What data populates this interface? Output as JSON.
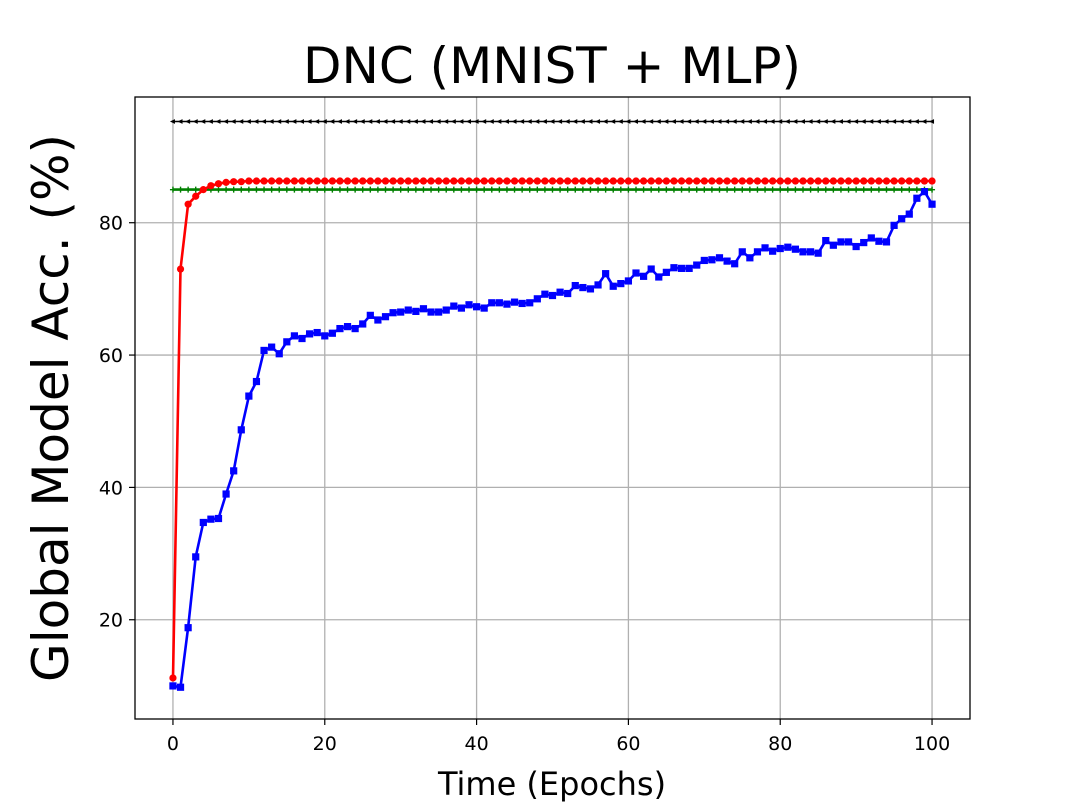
{
  "chart_data": {
    "type": "line",
    "title": "DNC (MNIST + MLP)",
    "xlabel": "Time (Epochs)",
    "ylabel": "Global Model Acc. (%)",
    "xlim": [
      -5,
      105
    ],
    "ylim": [
      5,
      99
    ],
    "xticks": [
      0,
      20,
      40,
      60,
      80,
      100
    ],
    "yticks": [
      20,
      40,
      60,
      80
    ],
    "xtick_labels": [
      "0",
      "20",
      "40",
      "60",
      "80",
      "100"
    ],
    "ytick_labels": [
      "20",
      "40",
      "60",
      "80"
    ],
    "grid": true,
    "legend": "none",
    "x": [
      0,
      1,
      2,
      3,
      4,
      5,
      6,
      7,
      8,
      9,
      10,
      11,
      12,
      13,
      14,
      15,
      16,
      17,
      18,
      19,
      20,
      21,
      22,
      23,
      24,
      25,
      26,
      27,
      28,
      29,
      30,
      31,
      32,
      33,
      34,
      35,
      36,
      37,
      38,
      39,
      40,
      41,
      42,
      43,
      44,
      45,
      46,
      47,
      48,
      49,
      50,
      51,
      52,
      53,
      54,
      55,
      56,
      57,
      58,
      59,
      60,
      61,
      62,
      63,
      64,
      65,
      66,
      67,
      68,
      69,
      70,
      71,
      72,
      73,
      74,
      75,
      76,
      77,
      78,
      79,
      80,
      81,
      82,
      83,
      84,
      85,
      86,
      87,
      88,
      89,
      90,
      91,
      92,
      93,
      94,
      95,
      96,
      97,
      98,
      99,
      100
    ],
    "series": [
      {
        "color": "#000000",
        "marker": "triangle-left",
        "constant": 95.3
      },
      {
        "color": "#008000",
        "marker": "plus",
        "constant": 85.0
      },
      {
        "color": "#ff0000",
        "marker": "circle",
        "values": [
          11.2,
          73.0,
          82.8,
          84.0,
          85.0,
          85.6,
          85.9,
          86.1,
          86.2,
          86.2,
          86.3,
          86.3,
          86.3,
          86.3,
          86.3,
          86.3,
          86.3,
          86.3,
          86.3,
          86.3,
          86.3,
          86.3,
          86.3,
          86.3,
          86.3,
          86.3,
          86.3,
          86.3,
          86.3,
          86.3,
          86.3,
          86.3,
          86.3,
          86.3,
          86.3,
          86.3,
          86.3,
          86.3,
          86.3,
          86.3,
          86.3,
          86.3,
          86.3,
          86.3,
          86.3,
          86.3,
          86.3,
          86.3,
          86.3,
          86.3,
          86.3,
          86.3,
          86.3,
          86.3,
          86.3,
          86.3,
          86.3,
          86.3,
          86.3,
          86.3,
          86.3,
          86.3,
          86.3,
          86.3,
          86.3,
          86.3,
          86.3,
          86.3,
          86.3,
          86.3,
          86.3,
          86.3,
          86.3,
          86.3,
          86.3,
          86.3,
          86.3,
          86.3,
          86.3,
          86.3,
          86.3,
          86.3,
          86.3,
          86.3,
          86.3,
          86.3,
          86.3,
          86.3,
          86.3,
          86.3,
          86.3,
          86.3,
          86.3,
          86.3,
          86.3,
          86.3,
          86.3,
          86.3,
          86.3,
          86.3,
          86.3
        ]
      },
      {
        "color": "#0000ff",
        "marker": "square",
        "values": [
          10.0,
          9.8,
          18.8,
          29.5,
          34.7,
          35.2,
          35.3,
          39.0,
          42.5,
          48.7,
          53.8,
          56.0,
          60.7,
          61.2,
          60.2,
          62.0,
          62.9,
          62.5,
          63.2,
          63.4,
          62.9,
          63.3,
          64.0,
          64.3,
          64.0,
          64.7,
          66.0,
          65.3,
          65.8,
          66.4,
          66.5,
          66.8,
          66.6,
          67.0,
          66.5,
          66.5,
          66.8,
          67.4,
          67.1,
          67.6,
          67.3,
          67.1,
          67.9,
          67.9,
          67.7,
          68.0,
          67.8,
          67.9,
          68.5,
          69.2,
          69.0,
          69.5,
          69.3,
          70.5,
          70.2,
          70.0,
          70.6,
          72.3,
          70.4,
          70.8,
          71.2,
          72.4,
          71.9,
          73.0,
          71.8,
          72.5,
          73.2,
          73.1,
          73.1,
          73.6,
          74.3,
          74.4,
          74.7,
          74.2,
          73.8,
          75.6,
          74.7,
          75.6,
          76.2,
          75.7,
          76.1,
          76.3,
          76.0,
          75.6,
          75.6,
          75.4,
          77.3,
          76.6,
          77.1,
          77.1,
          76.4,
          77.0,
          77.7,
          77.2,
          77.1,
          79.6,
          80.6,
          81.3,
          83.7,
          84.7,
          82.8
        ]
      }
    ]
  }
}
